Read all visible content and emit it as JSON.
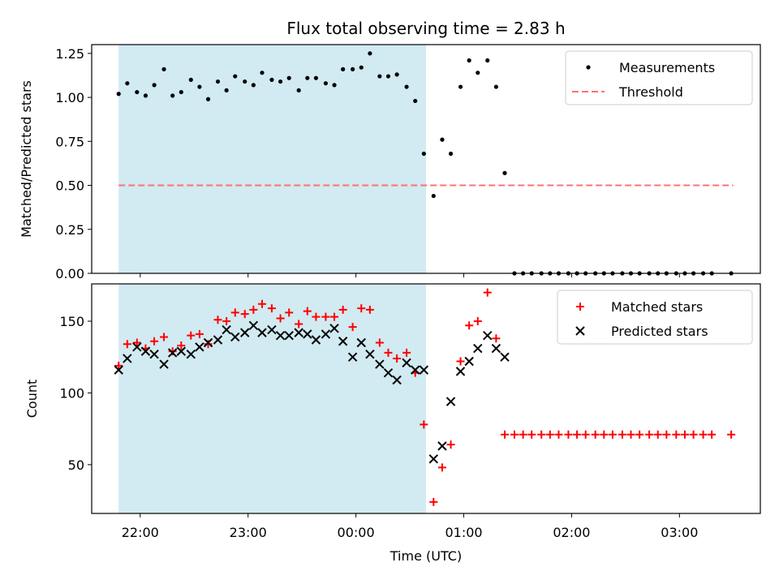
{
  "figure_title": "Flux total observing time = 2.83 h",
  "colors": {
    "measurement": "#000000",
    "threshold": "#ff7070",
    "matched": "#ff0000",
    "predicted": "#000000",
    "shade": "#add8e6"
  },
  "chart_data": [
    {
      "type": "scatter",
      "title": "Flux total observing time = 2.83 h",
      "xlabel": "",
      "ylabel": "Matched/Predicted stars",
      "xlim": [
        21.55,
        3.75
      ],
      "ylim": [
        0,
        1.3
      ],
      "x_is_time": true,
      "yticks": [
        "0.00",
        "0.25",
        "0.50",
        "0.75",
        "1.00",
        "1.25"
      ],
      "shaded_span": [
        21.8,
        24.65
      ],
      "legend": {
        "position": "upper right",
        "entries": [
          "Measurements",
          "Threshold"
        ]
      },
      "threshold": {
        "name": "Threshold",
        "y": 0.5,
        "x_range": [
          21.8,
          27.5
        ]
      },
      "series": [
        {
          "name": "Measurements",
          "marker": "dot",
          "x": [
            21.8,
            21.88,
            21.97,
            22.05,
            22.13,
            22.22,
            22.3,
            22.38,
            22.47,
            22.55,
            22.63,
            22.72,
            22.8,
            22.88,
            22.97,
            23.05,
            23.13,
            23.22,
            23.3,
            23.38,
            23.47,
            23.55,
            23.63,
            23.72,
            23.8,
            23.88,
            23.97,
            24.05,
            24.13,
            24.22,
            24.3,
            24.38,
            24.47,
            24.55,
            24.63,
            24.72,
            24.8,
            24.88,
            24.97,
            25.05,
            25.13,
            25.22,
            25.3,
            25.38,
            25.47,
            25.55,
            25.63,
            25.72,
            25.8,
            25.88,
            25.97,
            26.05,
            26.13,
            26.22,
            26.3,
            26.38,
            26.47,
            26.55,
            26.63,
            26.72,
            26.8,
            26.88,
            26.97,
            27.05,
            27.13,
            27.22,
            27.3,
            27.48
          ],
          "y": [
            1.02,
            1.08,
            1.03,
            1.01,
            1.07,
            1.16,
            1.01,
            1.03,
            1.1,
            1.06,
            0.99,
            1.09,
            1.04,
            1.12,
            1.09,
            1.07,
            1.14,
            1.1,
            1.09,
            1.11,
            1.04,
            1.11,
            1.11,
            1.08,
            1.07,
            1.16,
            1.16,
            1.17,
            1.25,
            1.12,
            1.12,
            1.13,
            1.06,
            0.98,
            0.68,
            0.44,
            0.76,
            0.68,
            1.06,
            1.21,
            1.14,
            1.21,
            1.06,
            0.57,
            0.0,
            0.0,
            0.0,
            0.0,
            0.0,
            0.0,
            0.0,
            0.0,
            0.0,
            0.0,
            0.0,
            0.0,
            0.0,
            0.0,
            0.0,
            0.0,
            0.0,
            0.0,
            0.0,
            0.0,
            0.0,
            0.0,
            0.0,
            0.0
          ]
        }
      ]
    },
    {
      "type": "scatter",
      "title": "",
      "xlabel": "Time (UTC)",
      "ylabel": "Count",
      "xlim": [
        21.55,
        3.75
      ],
      "ylim": [
        16,
        176
      ],
      "x_is_time": true,
      "xticks": [
        "22:00",
        "23:00",
        "00:00",
        "01:00",
        "02:00",
        "03:00"
      ],
      "yticks": [
        "50",
        "100",
        "150"
      ],
      "shaded_span": [
        21.8,
        24.65
      ],
      "legend": {
        "position": "upper right",
        "entries": [
          "Matched stars",
          "Predicted stars"
        ]
      },
      "series": [
        {
          "name": "Matched stars",
          "marker": "plus",
          "x": [
            21.8,
            21.88,
            21.97,
            22.05,
            22.13,
            22.22,
            22.3,
            22.38,
            22.47,
            22.55,
            22.63,
            22.72,
            22.8,
            22.88,
            22.97,
            23.05,
            23.13,
            23.22,
            23.3,
            23.38,
            23.47,
            23.55,
            23.63,
            23.72,
            23.8,
            23.88,
            23.97,
            24.05,
            24.13,
            24.22,
            24.3,
            24.38,
            24.47,
            24.55,
            24.63,
            24.72,
            24.8,
            24.88,
            24.97,
            25.05,
            25.13,
            25.22,
            25.3,
            25.38,
            25.47,
            25.55,
            25.63,
            25.72,
            25.8,
            25.88,
            25.97,
            26.05,
            26.13,
            26.22,
            26.3,
            26.38,
            26.47,
            26.55,
            26.63,
            26.72,
            26.8,
            26.88,
            26.97,
            27.05,
            27.13,
            27.22,
            27.3,
            27.48
          ],
          "y": [
            119,
            134,
            135,
            131,
            136,
            139,
            129,
            133,
            140,
            141,
            134,
            151,
            150,
            156,
            155,
            158,
            162,
            159,
            152,
            156,
            148,
            157,
            153,
            153,
            153,
            158,
            146,
            159,
            158,
            135,
            128,
            124,
            128,
            114,
            78,
            24,
            48,
            64,
            122,
            147,
            150,
            170,
            138,
            71,
            71,
            71,
            71,
            71,
            71,
            71,
            71,
            71,
            71,
            71,
            71,
            71,
            71,
            71,
            71,
            71,
            71,
            71,
            71,
            71,
            71,
            71,
            71,
            71
          ]
        },
        {
          "name": "Predicted stars",
          "marker": "x",
          "x": [
            21.8,
            21.88,
            21.97,
            22.05,
            22.13,
            22.22,
            22.3,
            22.38,
            22.47,
            22.55,
            22.63,
            22.72,
            22.8,
            22.88,
            22.97,
            23.05,
            23.13,
            23.22,
            23.3,
            23.38,
            23.47,
            23.55,
            23.63,
            23.72,
            23.8,
            23.88,
            23.97,
            24.05,
            24.13,
            24.22,
            24.3,
            24.38,
            24.47,
            24.55,
            24.63,
            24.72,
            24.8,
            24.88,
            24.97,
            25.05,
            25.13,
            25.22,
            25.3,
            25.38
          ],
          "y": [
            116,
            124,
            132,
            129,
            127,
            120,
            128,
            129,
            127,
            132,
            135,
            137,
            144,
            139,
            142,
            147,
            142,
            144,
            140,
            140,
            142,
            141,
            137,
            141,
            145,
            136,
            125,
            135,
            127,
            120,
            114,
            109,
            121,
            116,
            116,
            54,
            63,
            94,
            115,
            122,
            131,
            140,
            131,
            125
          ]
        }
      ]
    }
  ]
}
